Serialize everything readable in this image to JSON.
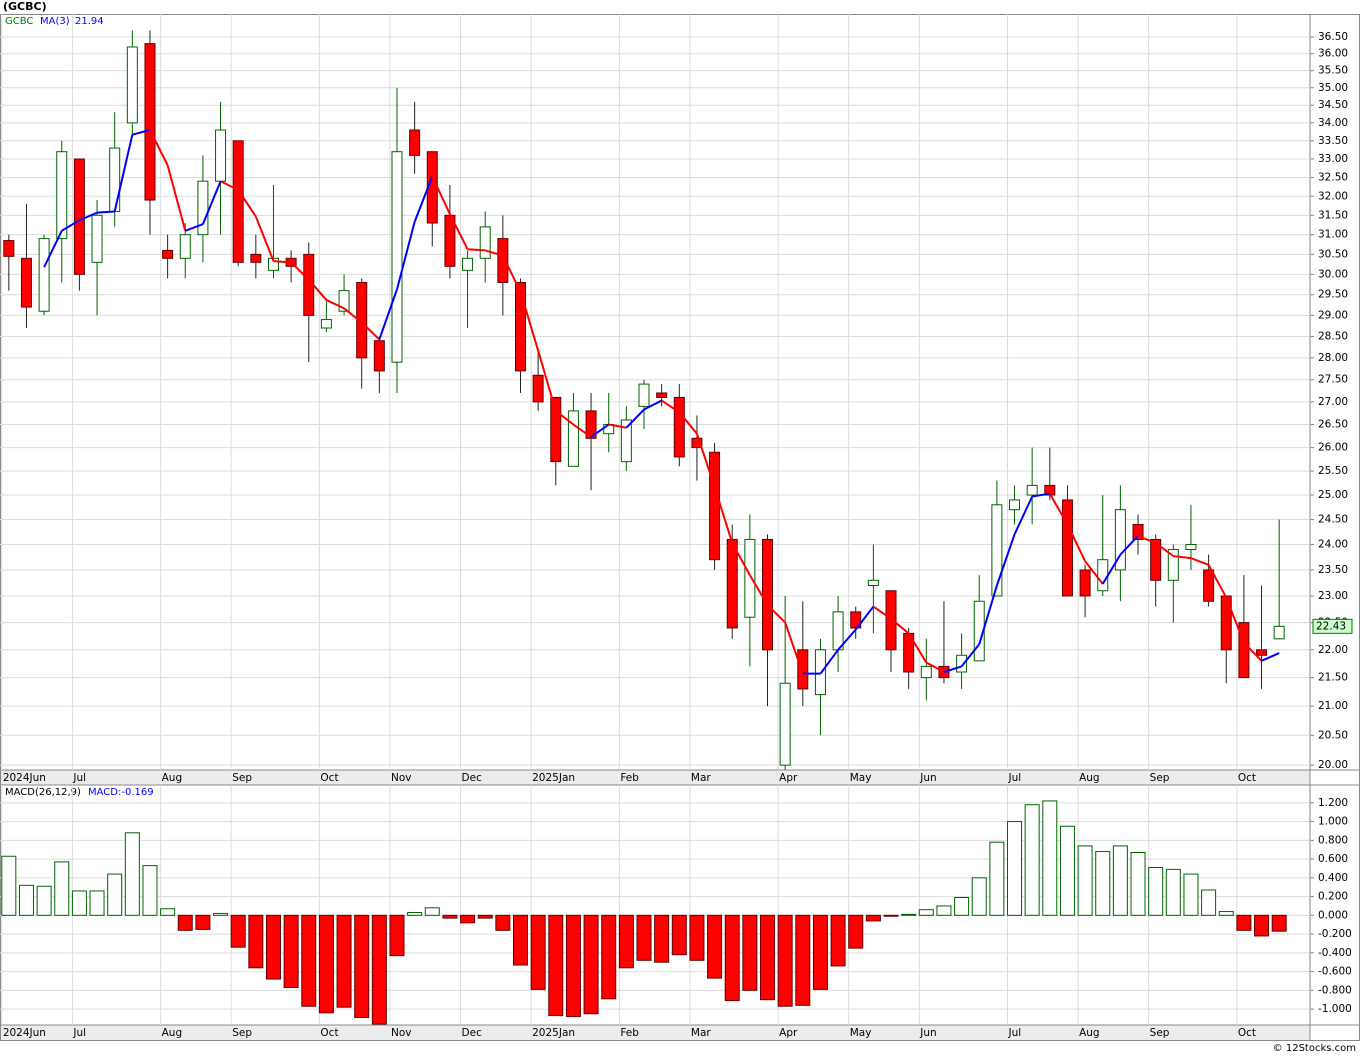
{
  "title": "(GCBC)",
  "footer": "© 12Stocks.com",
  "chart_data": [
    {
      "type": "candlestick",
      "name": "GCBC",
      "log_scale": true,
      "grid": true,
      "up_color": "#006400",
      "down_color": "#ff0000",
      "categories": [
        "2024Jun",
        null,
        null,
        null,
        "Jul",
        null,
        null,
        null,
        null,
        "Aug",
        null,
        null,
        null,
        "Sep",
        null,
        null,
        null,
        null,
        "Oct",
        null,
        null,
        null,
        "Nov",
        null,
        null,
        null,
        "Dec",
        null,
        null,
        null,
        "2025Jan",
        null,
        null,
        null,
        null,
        "Feb",
        null,
        null,
        null,
        "Mar",
        null,
        null,
        null,
        null,
        "Apr",
        null,
        null,
        null,
        "May",
        null,
        null,
        null,
        "Jun",
        null,
        null,
        null,
        null,
        "Jul",
        null,
        null,
        null,
        "Aug",
        null,
        null,
        null,
        "Sep",
        null,
        null,
        null,
        null,
        "Oct",
        null,
        null
      ],
      "open": [
        30.85,
        30.4,
        29.1,
        30.9,
        33.0,
        30.3,
        31.6,
        34.0,
        36.3,
        30.6,
        30.4,
        31.0,
        32.4,
        33.5,
        30.5,
        30.1,
        30.4,
        30.5,
        28.7,
        29.1,
        29.8,
        28.4,
        27.9,
        33.8,
        33.2,
        31.5,
        30.1,
        30.4,
        30.9,
        29.8,
        27.6,
        27.1,
        25.6,
        26.8,
        26.3,
        25.7,
        26.9,
        27.2,
        27.1,
        26.2,
        25.9,
        24.1,
        22.6,
        24.1,
        20.0,
        22.0,
        21.2,
        22.0,
        22.7,
        23.2,
        23.1,
        22.3,
        21.5,
        21.7,
        21.6,
        21.8,
        23.0,
        24.7,
        25.0,
        25.2,
        24.9,
        23.5,
        23.1,
        23.5,
        24.4,
        24.1,
        23.3,
        23.9,
        23.5,
        23.0,
        22.5,
        22.0,
        22.2
      ],
      "high": [
        31.0,
        31.8,
        31.0,
        33.5,
        33.0,
        31.9,
        34.3,
        36.7,
        36.7,
        31.0,
        31.3,
        33.1,
        34.6,
        33.5,
        31.0,
        32.3,
        30.6,
        30.8,
        29.4,
        30.0,
        29.9,
        28.5,
        35.0,
        34.6,
        33.2,
        32.3,
        30.6,
        31.6,
        31.5,
        29.9,
        28.2,
        27.1,
        27.2,
        27.2,
        27.2,
        26.9,
        27.5,
        27.4,
        27.4,
        26.7,
        26.1,
        24.4,
        24.6,
        24.2,
        23.0,
        22.9,
        22.2,
        23.0,
        22.8,
        24.0,
        23.1,
        22.4,
        22.2,
        22.9,
        22.3,
        23.4,
        25.3,
        25.2,
        26.0,
        26.0,
        25.2,
        23.6,
        25.0,
        25.2,
        24.6,
        24.2,
        24.0,
        24.8,
        23.8,
        23.0,
        23.4,
        23.2,
        24.5
      ],
      "low": [
        29.6,
        28.7,
        29.0,
        29.8,
        29.6,
        29.0,
        31.2,
        33.6,
        31.0,
        29.9,
        29.9,
        30.3,
        31.0,
        30.2,
        29.9,
        29.9,
        29.8,
        27.9,
        28.6,
        29.0,
        27.3,
        27.2,
        27.2,
        32.6,
        30.7,
        29.9,
        28.7,
        29.8,
        29.0,
        27.2,
        26.8,
        25.2,
        25.6,
        25.1,
        25.9,
        25.5,
        26.4,
        26.9,
        25.6,
        25.3,
        23.5,
        22.2,
        21.7,
        21.0,
        19.7,
        21.0,
        20.5,
        21.6,
        22.2,
        22.3,
        21.6,
        21.3,
        21.1,
        21.4,
        21.3,
        21.8,
        23.0,
        24.4,
        24.4,
        24.9,
        23.0,
        22.6,
        23.0,
        22.9,
        23.8,
        22.8,
        22.5,
        23.5,
        22.8,
        21.4,
        21.5,
        21.3,
        22.2
      ],
      "close": [
        30.45,
        29.2,
        30.9,
        33.2,
        30.0,
        31.5,
        33.3,
        36.2,
        31.9,
        30.4,
        31.0,
        32.4,
        33.8,
        30.3,
        30.3,
        30.4,
        30.2,
        29.0,
        28.9,
        29.6,
        28.0,
        27.7,
        33.2,
        33.1,
        31.3,
        30.2,
        30.4,
        31.2,
        29.8,
        27.7,
        27.0,
        25.7,
        26.8,
        26.2,
        26.5,
        26.6,
        27.4,
        27.1,
        25.8,
        26.0,
        23.7,
        22.4,
        24.1,
        22.0,
        21.4,
        21.3,
        22.0,
        22.7,
        22.4,
        23.3,
        22.0,
        21.6,
        21.7,
        21.5,
        21.9,
        22.9,
        24.8,
        24.9,
        25.2,
        25.0,
        23.0,
        23.0,
        23.7,
        24.7,
        24.1,
        23.3,
        23.9,
        24.0,
        22.9,
        22.0,
        21.5,
        21.9,
        22.43
      ],
      "overlay": {
        "name": "MA(3)",
        "up_color": "#0000ff",
        "down_color": "#ff0000",
        "values": [
          null,
          null,
          30.18,
          31.1,
          31.37,
          31.57,
          31.6,
          33.67,
          33.8,
          32.83,
          31.1,
          31.27,
          32.4,
          32.17,
          31.47,
          30.33,
          30.3,
          29.87,
          29.37,
          29.17,
          28.83,
          28.43,
          29.63,
          31.33,
          32.53,
          31.53,
          30.63,
          30.6,
          30.47,
          29.57,
          28.17,
          26.8,
          26.5,
          26.23,
          26.5,
          26.43,
          26.83,
          27.03,
          26.77,
          26.3,
          25.17,
          24.03,
          23.4,
          22.83,
          22.5,
          21.57,
          21.57,
          22.0,
          22.37,
          22.8,
          22.57,
          22.3,
          21.77,
          21.6,
          21.7,
          22.1,
          23.2,
          24.2,
          24.97,
          25.03,
          24.4,
          23.67,
          23.23,
          23.8,
          24.17,
          24.03,
          23.77,
          23.73,
          23.6,
          22.97,
          22.13,
          21.8,
          21.94
        ]
      },
      "ylim": [
        19.92,
        37.2
      ],
      "yticks": [
        {
          "value": 20,
          "label": "20.00"
        },
        {
          "value": 20.5,
          "label": "20.50"
        },
        {
          "value": 21,
          "label": "21.00"
        },
        {
          "value": 21.5,
          "label": "21.50"
        },
        {
          "value": 22,
          "label": "22.00"
        },
        {
          "value": 22.5,
          "label": "22.50"
        },
        {
          "value": 23,
          "label": "23.00"
        },
        {
          "value": 23.5,
          "label": "23.50"
        },
        {
          "value": 24,
          "label": "24.00"
        },
        {
          "value": 24.5,
          "label": "24.50"
        },
        {
          "value": 25,
          "label": "25.00"
        },
        {
          "value": 25.5,
          "label": "25.50"
        },
        {
          "value": 26,
          "label": "26.00"
        },
        {
          "value": 26.5,
          "label": "26.50"
        },
        {
          "value": 27,
          "label": "27.00"
        },
        {
          "value": 27.5,
          "label": "27.50"
        },
        {
          "value": 28,
          "label": "28.00"
        },
        {
          "value": 28.5,
          "label": "28.50"
        },
        {
          "value": 29,
          "label": "29.00"
        },
        {
          "value": 29.5,
          "label": "29.50"
        },
        {
          "value": 30,
          "label": "30.00"
        },
        {
          "value": 30.5,
          "label": "30.50"
        },
        {
          "value": 31,
          "label": "31.00"
        },
        {
          "value": 31.5,
          "label": "31.50"
        },
        {
          "value": 32,
          "label": "32.00"
        },
        {
          "value": 32.5,
          "label": "32.50"
        },
        {
          "value": 33,
          "label": "33.00"
        },
        {
          "value": 33.5,
          "label": "33.50"
        },
        {
          "value": 34,
          "label": "34.00"
        },
        {
          "value": 34.5,
          "label": "34.50"
        },
        {
          "value": 35,
          "label": "35.00"
        },
        {
          "value": 35.5,
          "label": "35.50"
        },
        {
          "value": 36,
          "label": "36.00"
        },
        {
          "value": 36.5,
          "label": "36.50"
        }
      ]
    },
    {
      "type": "bar",
      "name": "MACD(26,12,9)",
      "value_name": "MACD:",
      "grid": true,
      "up_color": "#006400",
      "down_color": "#ff0000",
      "values": [
        0.63,
        0.32,
        0.31,
        0.57,
        0.26,
        0.26,
        0.44,
        0.88,
        0.53,
        0.07,
        -0.16,
        -0.15,
        0.02,
        -0.34,
        -0.56,
        -0.68,
        -0.77,
        -0.97,
        -1.04,
        -0.98,
        -1.09,
        -1.16,
        -0.43,
        0.03,
        0.08,
        -0.03,
        -0.08,
        -0.03,
        -0.16,
        -0.53,
        -0.79,
        -1.07,
        -1.08,
        -1.05,
        -0.89,
        -0.56,
        -0.48,
        -0.5,
        -0.42,
        -0.48,
        -0.67,
        -0.91,
        -0.8,
        -0.9,
        -0.97,
        -0.96,
        -0.79,
        -0.54,
        -0.35,
        -0.06,
        -0.01,
        0.01,
        0.06,
        0.1,
        0.19,
        0.4,
        0.78,
        1.0,
        1.18,
        1.22,
        0.95,
        0.74,
        0.68,
        0.74,
        0.67,
        0.51,
        0.49,
        0.44,
        0.27,
        0.04,
        -0.16,
        -0.22,
        -0.169
      ],
      "ylim": [
        -1.17,
        1.39
      ],
      "yticks": [
        {
          "value": -1,
          "label": "-1.000"
        },
        {
          "value": -0.8,
          "label": "-0.800"
        },
        {
          "value": -0.6,
          "label": "-0.600"
        },
        {
          "value": -0.4,
          "label": "-0.400"
        },
        {
          "value": -0.2,
          "label": "-0.200"
        },
        {
          "value": 0,
          "label": "0.000"
        },
        {
          "value": 0.2,
          "label": "0.200"
        },
        {
          "value": 0.4,
          "label": "0.400"
        },
        {
          "value": 0.6,
          "label": "0.600"
        },
        {
          "value": 0.8,
          "label": "0.800"
        },
        {
          "value": 1,
          "label": "1.000"
        },
        {
          "value": 1.2,
          "label": "1.200"
        }
      ]
    }
  ]
}
